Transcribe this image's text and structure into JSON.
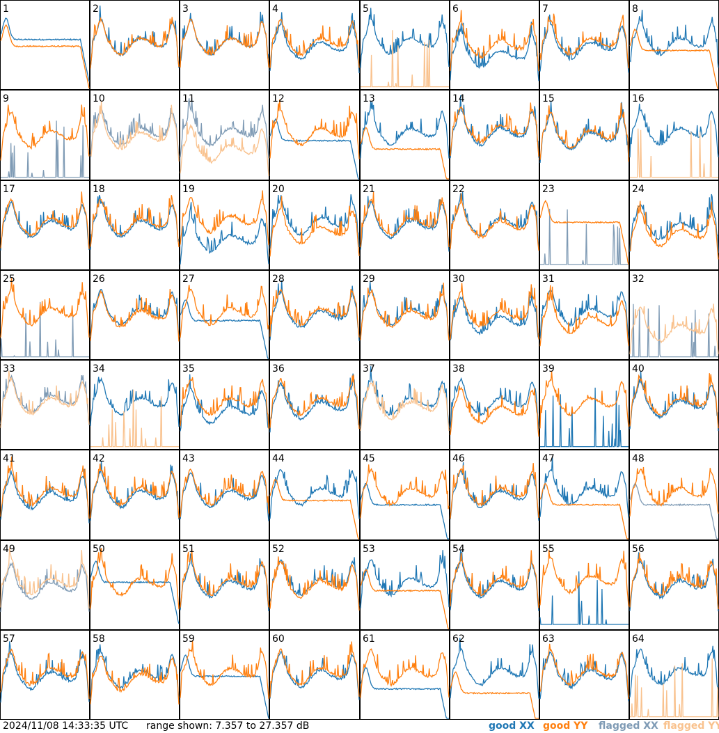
{
  "footer": {
    "timestamp": "2024/11/08 14:33:35 UTC",
    "range_text": "range shown: 7.357 to 27.357 dB"
  },
  "legend": [
    {
      "key": "good_xx",
      "label": "good XX",
      "color": "#1f77b4"
    },
    {
      "key": "good_yy",
      "label": "good YY",
      "color": "#ff7f0e"
    },
    {
      "key": "flagged_xx",
      "label": "flagged XX",
      "color": "#7f9bb5"
    },
    {
      "key": "flagged_yy",
      "label": "flagged YY",
      "color": "#f9c28e"
    }
  ],
  "chart_data": {
    "type": "line",
    "layout": "small-multiples 8x8",
    "ylim_db": [
      7.357,
      27.357
    ],
    "series_keys": [
      "good_xx",
      "good_yy",
      "flagged_xx",
      "flagged_yy"
    ],
    "panels": [
      {
        "label": "1",
        "xx": {
          "shape": "drop",
          "level": 0.58,
          "state": "good"
        },
        "yy": {
          "shape": "drop",
          "level": 0.5,
          "state": "good"
        }
      },
      {
        "label": "2",
        "xx": {
          "shape": "normal",
          "level": 0.55,
          "state": "good"
        },
        "yy": {
          "shape": "normal",
          "level": 0.55,
          "state": "good"
        }
      },
      {
        "label": "3",
        "xx": {
          "shape": "normal",
          "level": 0.55,
          "state": "good"
        },
        "yy": {
          "shape": "normal",
          "level": 0.55,
          "state": "good"
        }
      },
      {
        "label": "4",
        "xx": {
          "shape": "normal",
          "level": 0.5,
          "state": "good"
        },
        "yy": {
          "shape": "normal",
          "level": 0.55,
          "state": "good"
        }
      },
      {
        "label": "5",
        "xx": {
          "shape": "normal",
          "level": 0.55,
          "state": "good"
        },
        "yy": {
          "shape": "spikes",
          "level": 0.02,
          "state": "flagged"
        }
      },
      {
        "label": "6",
        "xx": {
          "shape": "normal",
          "level": 0.4,
          "state": "good"
        },
        "yy": {
          "shape": "normal",
          "level": 0.52,
          "state": "good"
        }
      },
      {
        "label": "7",
        "xx": {
          "shape": "normal",
          "level": 0.5,
          "state": "good"
        },
        "yy": {
          "shape": "normal",
          "level": 0.55,
          "state": "good"
        }
      },
      {
        "label": "8",
        "xx": {
          "shape": "normal",
          "level": 0.55,
          "state": "good"
        },
        "yy": {
          "shape": "drop",
          "level": 0.45,
          "state": "good"
        }
      },
      {
        "label": "9",
        "xx": {
          "shape": "spikes",
          "level": 0.02,
          "state": "flagged"
        },
        "yy": {
          "shape": "normal",
          "level": 0.52,
          "state": "good"
        }
      },
      {
        "label": "10",
        "xx": {
          "shape": "normal",
          "level": 0.55,
          "state": "flagged"
        },
        "yy": {
          "shape": "normal",
          "level": 0.5,
          "state": "flagged"
        }
      },
      {
        "label": "11",
        "xx": {
          "shape": "normal",
          "level": 0.55,
          "state": "flagged"
        },
        "yy": {
          "shape": "normal",
          "level": 0.35,
          "state": "flagged"
        }
      },
      {
        "label": "12",
        "xx": {
          "shape": "drop",
          "level": 0.45,
          "state": "good"
        },
        "yy": {
          "shape": "normal",
          "level": 0.55,
          "state": "good"
        }
      },
      {
        "label": "13",
        "xx": {
          "shape": "normal",
          "level": 0.55,
          "state": "good"
        },
        "yy": {
          "shape": "drop",
          "level": 0.35,
          "state": "good"
        }
      },
      {
        "label": "14",
        "xx": {
          "shape": "normal",
          "level": 0.55,
          "state": "good"
        },
        "yy": {
          "shape": "normal",
          "level": 0.58,
          "state": "good"
        }
      },
      {
        "label": "15",
        "xx": {
          "shape": "normal",
          "level": 0.5,
          "state": "good"
        },
        "yy": {
          "shape": "normal",
          "level": 0.52,
          "state": "good"
        }
      },
      {
        "label": "16",
        "xx": {
          "shape": "normal",
          "level": 0.55,
          "state": "good"
        },
        "yy": {
          "shape": "spikes",
          "level": 0.02,
          "state": "flagged"
        }
      },
      {
        "label": "17",
        "xx": {
          "shape": "normal",
          "level": 0.52,
          "state": "good"
        },
        "yy": {
          "shape": "normal",
          "level": 0.55,
          "state": "good"
        }
      },
      {
        "label": "18",
        "xx": {
          "shape": "normal",
          "level": 0.52,
          "state": "good"
        },
        "yy": {
          "shape": "normal",
          "level": 0.55,
          "state": "good"
        }
      },
      {
        "label": "19",
        "xx": {
          "shape": "normal",
          "level": 0.35,
          "state": "good"
        },
        "yy": {
          "shape": "normal",
          "level": 0.58,
          "state": "good"
        }
      },
      {
        "label": "20",
        "xx": {
          "shape": "normal",
          "level": 0.55,
          "state": "good"
        },
        "yy": {
          "shape": "normal",
          "level": 0.45,
          "state": "good"
        }
      },
      {
        "label": "21",
        "xx": {
          "shape": "normal",
          "level": 0.52,
          "state": "good"
        },
        "yy": {
          "shape": "normal",
          "level": 0.55,
          "state": "good"
        }
      },
      {
        "label": "22",
        "xx": {
          "shape": "normal",
          "level": 0.55,
          "state": "good"
        },
        "yy": {
          "shape": "normal",
          "level": 0.52,
          "state": "good"
        }
      },
      {
        "label": "23",
        "xx": {
          "shape": "spikes",
          "level": 0.05,
          "state": "flagged"
        },
        "yy": {
          "shape": "drop",
          "level": 0.55,
          "state": "good"
        }
      },
      {
        "label": "24",
        "xx": {
          "shape": "normal",
          "level": 0.5,
          "state": "good"
        },
        "yy": {
          "shape": "normal",
          "level": 0.42,
          "state": "good"
        }
      },
      {
        "label": "25",
        "xx": {
          "shape": "spikes",
          "level": 0.02,
          "state": "flagged"
        },
        "yy": {
          "shape": "normal",
          "level": 0.55,
          "state": "good"
        }
      },
      {
        "label": "26",
        "xx": {
          "shape": "normal",
          "level": 0.55,
          "state": "good"
        },
        "yy": {
          "shape": "normal",
          "level": 0.52,
          "state": "good"
        }
      },
      {
        "label": "27",
        "xx": {
          "shape": "drop",
          "level": 0.45,
          "state": "good"
        },
        "yy": {
          "shape": "normal",
          "level": 0.55,
          "state": "good"
        }
      },
      {
        "label": "28",
        "xx": {
          "shape": "normal",
          "level": 0.52,
          "state": "good"
        },
        "yy": {
          "shape": "normal",
          "level": 0.55,
          "state": "good"
        }
      },
      {
        "label": "29",
        "xx": {
          "shape": "normal",
          "level": 0.55,
          "state": "good"
        },
        "yy": {
          "shape": "normal",
          "level": 0.52,
          "state": "good"
        }
      },
      {
        "label": "30",
        "xx": {
          "shape": "normal",
          "level": 0.45,
          "state": "good"
        },
        "yy": {
          "shape": "normal",
          "level": 0.52,
          "state": "good"
        }
      },
      {
        "label": "31",
        "xx": {
          "shape": "normal",
          "level": 0.55,
          "state": "good"
        },
        "yy": {
          "shape": "normal",
          "level": 0.45,
          "state": "good"
        }
      },
      {
        "label": "32",
        "xx": {
          "shape": "spikes",
          "level": 0.02,
          "state": "flagged"
        },
        "yy": {
          "shape": "normal",
          "level": 0.35,
          "state": "flagged"
        }
      },
      {
        "label": "33",
        "xx": {
          "shape": "normal",
          "level": 0.58,
          "state": "flagged"
        },
        "yy": {
          "shape": "normal",
          "level": 0.55,
          "state": "flagged"
        }
      },
      {
        "label": "34",
        "xx": {
          "shape": "normal",
          "level": 0.55,
          "state": "good"
        },
        "yy": {
          "shape": "spikes",
          "level": 0.02,
          "state": "flagged"
        }
      },
      {
        "label": "35",
        "xx": {
          "shape": "normal",
          "level": 0.45,
          "state": "good"
        },
        "yy": {
          "shape": "normal",
          "level": 0.55,
          "state": "good"
        }
      },
      {
        "label": "36",
        "xx": {
          "shape": "normal",
          "level": 0.5,
          "state": "good"
        },
        "yy": {
          "shape": "normal",
          "level": 0.55,
          "state": "good"
        }
      },
      {
        "label": "37",
        "xx": {
          "shape": "normal",
          "level": 0.55,
          "state": "good"
        },
        "yy": {
          "shape": "normal",
          "level": 0.5,
          "state": "flagged"
        }
      },
      {
        "label": "38",
        "xx": {
          "shape": "normal",
          "level": 0.55,
          "state": "good"
        },
        "yy": {
          "shape": "normal",
          "level": 0.45,
          "state": "good"
        }
      },
      {
        "label": "39",
        "xx": {
          "shape": "spikes",
          "level": 0.02,
          "state": "good"
        },
        "yy": {
          "shape": "normal",
          "level": 0.55,
          "state": "good"
        }
      },
      {
        "label": "40",
        "xx": {
          "shape": "normal",
          "level": 0.52,
          "state": "good"
        },
        "yy": {
          "shape": "normal",
          "level": 0.55,
          "state": "good"
        }
      },
      {
        "label": "41",
        "xx": {
          "shape": "normal",
          "level": 0.5,
          "state": "good"
        },
        "yy": {
          "shape": "normal",
          "level": 0.55,
          "state": "good"
        }
      },
      {
        "label": "42",
        "xx": {
          "shape": "normal",
          "level": 0.52,
          "state": "good"
        },
        "yy": {
          "shape": "normal",
          "level": 0.55,
          "state": "good"
        }
      },
      {
        "label": "43",
        "xx": {
          "shape": "normal",
          "level": 0.52,
          "state": "good"
        },
        "yy": {
          "shape": "normal",
          "level": 0.55,
          "state": "good"
        }
      },
      {
        "label": "44",
        "xx": {
          "shape": "normal",
          "level": 0.55,
          "state": "good"
        },
        "yy": {
          "shape": "drop",
          "level": 0.45,
          "state": "good"
        }
      },
      {
        "label": "45",
        "xx": {
          "shape": "drop",
          "level": 0.4,
          "state": "good"
        },
        "yy": {
          "shape": "normal",
          "level": 0.55,
          "state": "good"
        }
      },
      {
        "label": "46",
        "xx": {
          "shape": "normal",
          "level": 0.52,
          "state": "good"
        },
        "yy": {
          "shape": "normal",
          "level": 0.55,
          "state": "good"
        }
      },
      {
        "label": "47",
        "xx": {
          "shape": "normal",
          "level": 0.55,
          "state": "good"
        },
        "yy": {
          "shape": "drop",
          "level": 0.4,
          "state": "good"
        }
      },
      {
        "label": "48",
        "xx": {
          "shape": "drop",
          "level": 0.4,
          "state": "flagged"
        },
        "yy": {
          "shape": "normal",
          "level": 0.55,
          "state": "good"
        }
      },
      {
        "label": "49",
        "xx": {
          "shape": "normal",
          "level": 0.5,
          "state": "flagged"
        },
        "yy": {
          "shape": "normal",
          "level": 0.55,
          "state": "flagged"
        }
      },
      {
        "label": "50",
        "xx": {
          "shape": "drop",
          "level": 0.55,
          "state": "good"
        },
        "yy": {
          "shape": "normal",
          "level": 0.55,
          "state": "good"
        }
      },
      {
        "label": "51",
        "xx": {
          "shape": "normal",
          "level": 0.52,
          "state": "good"
        },
        "yy": {
          "shape": "normal",
          "level": 0.55,
          "state": "good"
        }
      },
      {
        "label": "52",
        "xx": {
          "shape": "normal",
          "level": 0.55,
          "state": "good"
        },
        "yy": {
          "shape": "normal",
          "level": 0.52,
          "state": "good"
        }
      },
      {
        "label": "53",
        "xx": {
          "shape": "normal",
          "level": 0.55,
          "state": "good"
        },
        "yy": {
          "shape": "drop",
          "level": 0.45,
          "state": "good"
        }
      },
      {
        "label": "54",
        "xx": {
          "shape": "normal",
          "level": 0.52,
          "state": "good"
        },
        "yy": {
          "shape": "normal",
          "level": 0.55,
          "state": "good"
        }
      },
      {
        "label": "55",
        "xx": {
          "shape": "spikes",
          "level": 0.05,
          "state": "good"
        },
        "yy": {
          "shape": "normal",
          "level": 0.58,
          "state": "good"
        }
      },
      {
        "label": "56",
        "xx": {
          "shape": "normal",
          "level": 0.52,
          "state": "good"
        },
        "yy": {
          "shape": "normal",
          "level": 0.55,
          "state": "good"
        }
      },
      {
        "label": "57",
        "xx": {
          "shape": "normal",
          "level": 0.5,
          "state": "good"
        },
        "yy": {
          "shape": "normal",
          "level": 0.55,
          "state": "good"
        }
      },
      {
        "label": "58",
        "xx": {
          "shape": "normal",
          "level": 0.52,
          "state": "good"
        },
        "yy": {
          "shape": "normal",
          "level": 0.48,
          "state": "good"
        }
      },
      {
        "label": "59",
        "xx": {
          "shape": "drop",
          "level": 0.5,
          "state": "good"
        },
        "yy": {
          "shape": "normal",
          "level": 0.55,
          "state": "good"
        }
      },
      {
        "label": "60",
        "xx": {
          "shape": "normal",
          "level": 0.52,
          "state": "good"
        },
        "yy": {
          "shape": "normal",
          "level": 0.55,
          "state": "good"
        }
      },
      {
        "label": "61",
        "xx": {
          "shape": "drop",
          "level": 0.35,
          "state": "good"
        },
        "yy": {
          "shape": "normal",
          "level": 0.55,
          "state": "good"
        }
      },
      {
        "label": "62",
        "xx": {
          "shape": "normal",
          "level": 0.55,
          "state": "good"
        },
        "yy": {
          "shape": "drop",
          "level": 0.3,
          "state": "good"
        }
      },
      {
        "label": "63",
        "xx": {
          "shape": "normal",
          "level": 0.52,
          "state": "good"
        },
        "yy": {
          "shape": "normal",
          "level": 0.55,
          "state": "good"
        }
      },
      {
        "label": "64",
        "xx": {
          "shape": "normal",
          "level": 0.55,
          "state": "good"
        },
        "yy": {
          "shape": "spikes",
          "level": 0.02,
          "state": "flagged"
        }
      }
    ]
  }
}
